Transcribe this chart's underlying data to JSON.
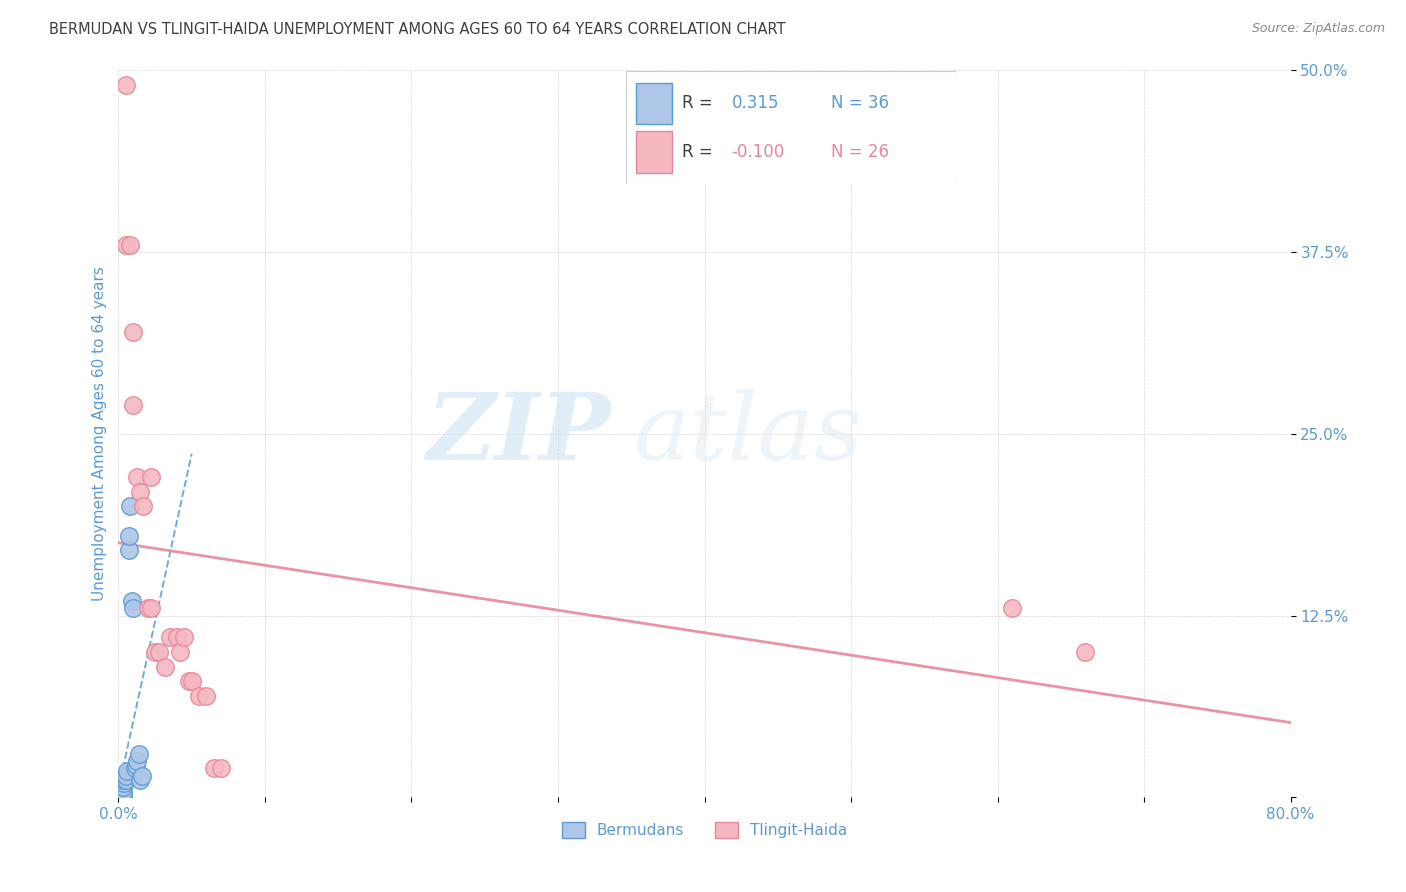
{
  "title": "BERMUDAN VS TLINGIT-HAIDA UNEMPLOYMENT AMONG AGES 60 TO 64 YEARS CORRELATION CHART",
  "source": "Source: ZipAtlas.com",
  "ylabel": "Unemployment Among Ages 60 to 64 years",
  "xlim": [
    0.0,
    0.8
  ],
  "ylim": [
    0.0,
    0.5
  ],
  "xticks": [
    0.0,
    0.1,
    0.2,
    0.3,
    0.4,
    0.5,
    0.6,
    0.7,
    0.8
  ],
  "xticklabels": [
    "0.0%",
    "",
    "",
    "",
    "",
    "",
    "",
    "",
    "80.0%"
  ],
  "yticks": [
    0.0,
    0.125,
    0.25,
    0.375,
    0.5
  ],
  "yticklabels": [
    "",
    "12.5%",
    "25.0%",
    "37.5%",
    "50.0%"
  ],
  "bermudans_x": [
    0.001,
    0.001,
    0.001,
    0.001,
    0.001,
    0.001,
    0.001,
    0.001,
    0.001,
    0.001,
    0.002,
    0.002,
    0.002,
    0.002,
    0.002,
    0.002,
    0.003,
    0.003,
    0.003,
    0.003,
    0.004,
    0.004,
    0.005,
    0.005,
    0.006,
    0.007,
    0.007,
    0.008,
    0.009,
    0.01,
    0.011,
    0.012,
    0.013,
    0.014,
    0.015,
    0.016
  ],
  "bermudans_y": [
    0.0,
    0.0,
    0.0,
    0.0,
    0.0,
    0.0,
    0.0,
    0.001,
    0.002,
    0.003,
    0.0,
    0.001,
    0.002,
    0.003,
    0.004,
    0.005,
    0.0,
    0.002,
    0.004,
    0.007,
    0.01,
    0.012,
    0.012,
    0.015,
    0.018,
    0.17,
    0.18,
    0.2,
    0.135,
    0.13,
    0.02,
    0.022,
    0.025,
    0.03,
    0.012,
    0.015
  ],
  "tlingit_x": [
    0.005,
    0.005,
    0.008,
    0.01,
    0.01,
    0.013,
    0.015,
    0.017,
    0.02,
    0.022,
    0.022,
    0.025,
    0.028,
    0.032,
    0.035,
    0.04,
    0.042,
    0.045,
    0.048,
    0.05,
    0.055,
    0.06,
    0.065,
    0.07,
    0.61,
    0.66
  ],
  "tlingit_y": [
    0.49,
    0.38,
    0.38,
    0.32,
    0.27,
    0.22,
    0.21,
    0.2,
    0.13,
    0.22,
    0.13,
    0.1,
    0.1,
    0.09,
    0.11,
    0.11,
    0.1,
    0.11,
    0.08,
    0.08,
    0.07,
    0.07,
    0.02,
    0.02,
    0.13,
    0.1
  ],
  "bermudan_R": 0.315,
  "bermudan_N": 36,
  "tlingit_R": -0.1,
  "tlingit_N": 26,
  "bermudan_color": "#aec6e8",
  "bermudan_edge": "#5b9bd5",
  "tlingit_color": "#f4b8c1",
  "tlingit_edge": "#e8879a",
  "trend_blue_color": "#5b9bd5",
  "trend_pink_color": "#e8879a",
  "watermark_zip": "ZIP",
  "watermark_atlas": "atlas",
  "legend_labels": [
    "Bermudans",
    "Tlingit-Haida"
  ],
  "title_color": "#404040",
  "axis_label_color": "#5b9bd5",
  "tick_color": "#5b9bd5",
  "label_color_black": "#404040"
}
